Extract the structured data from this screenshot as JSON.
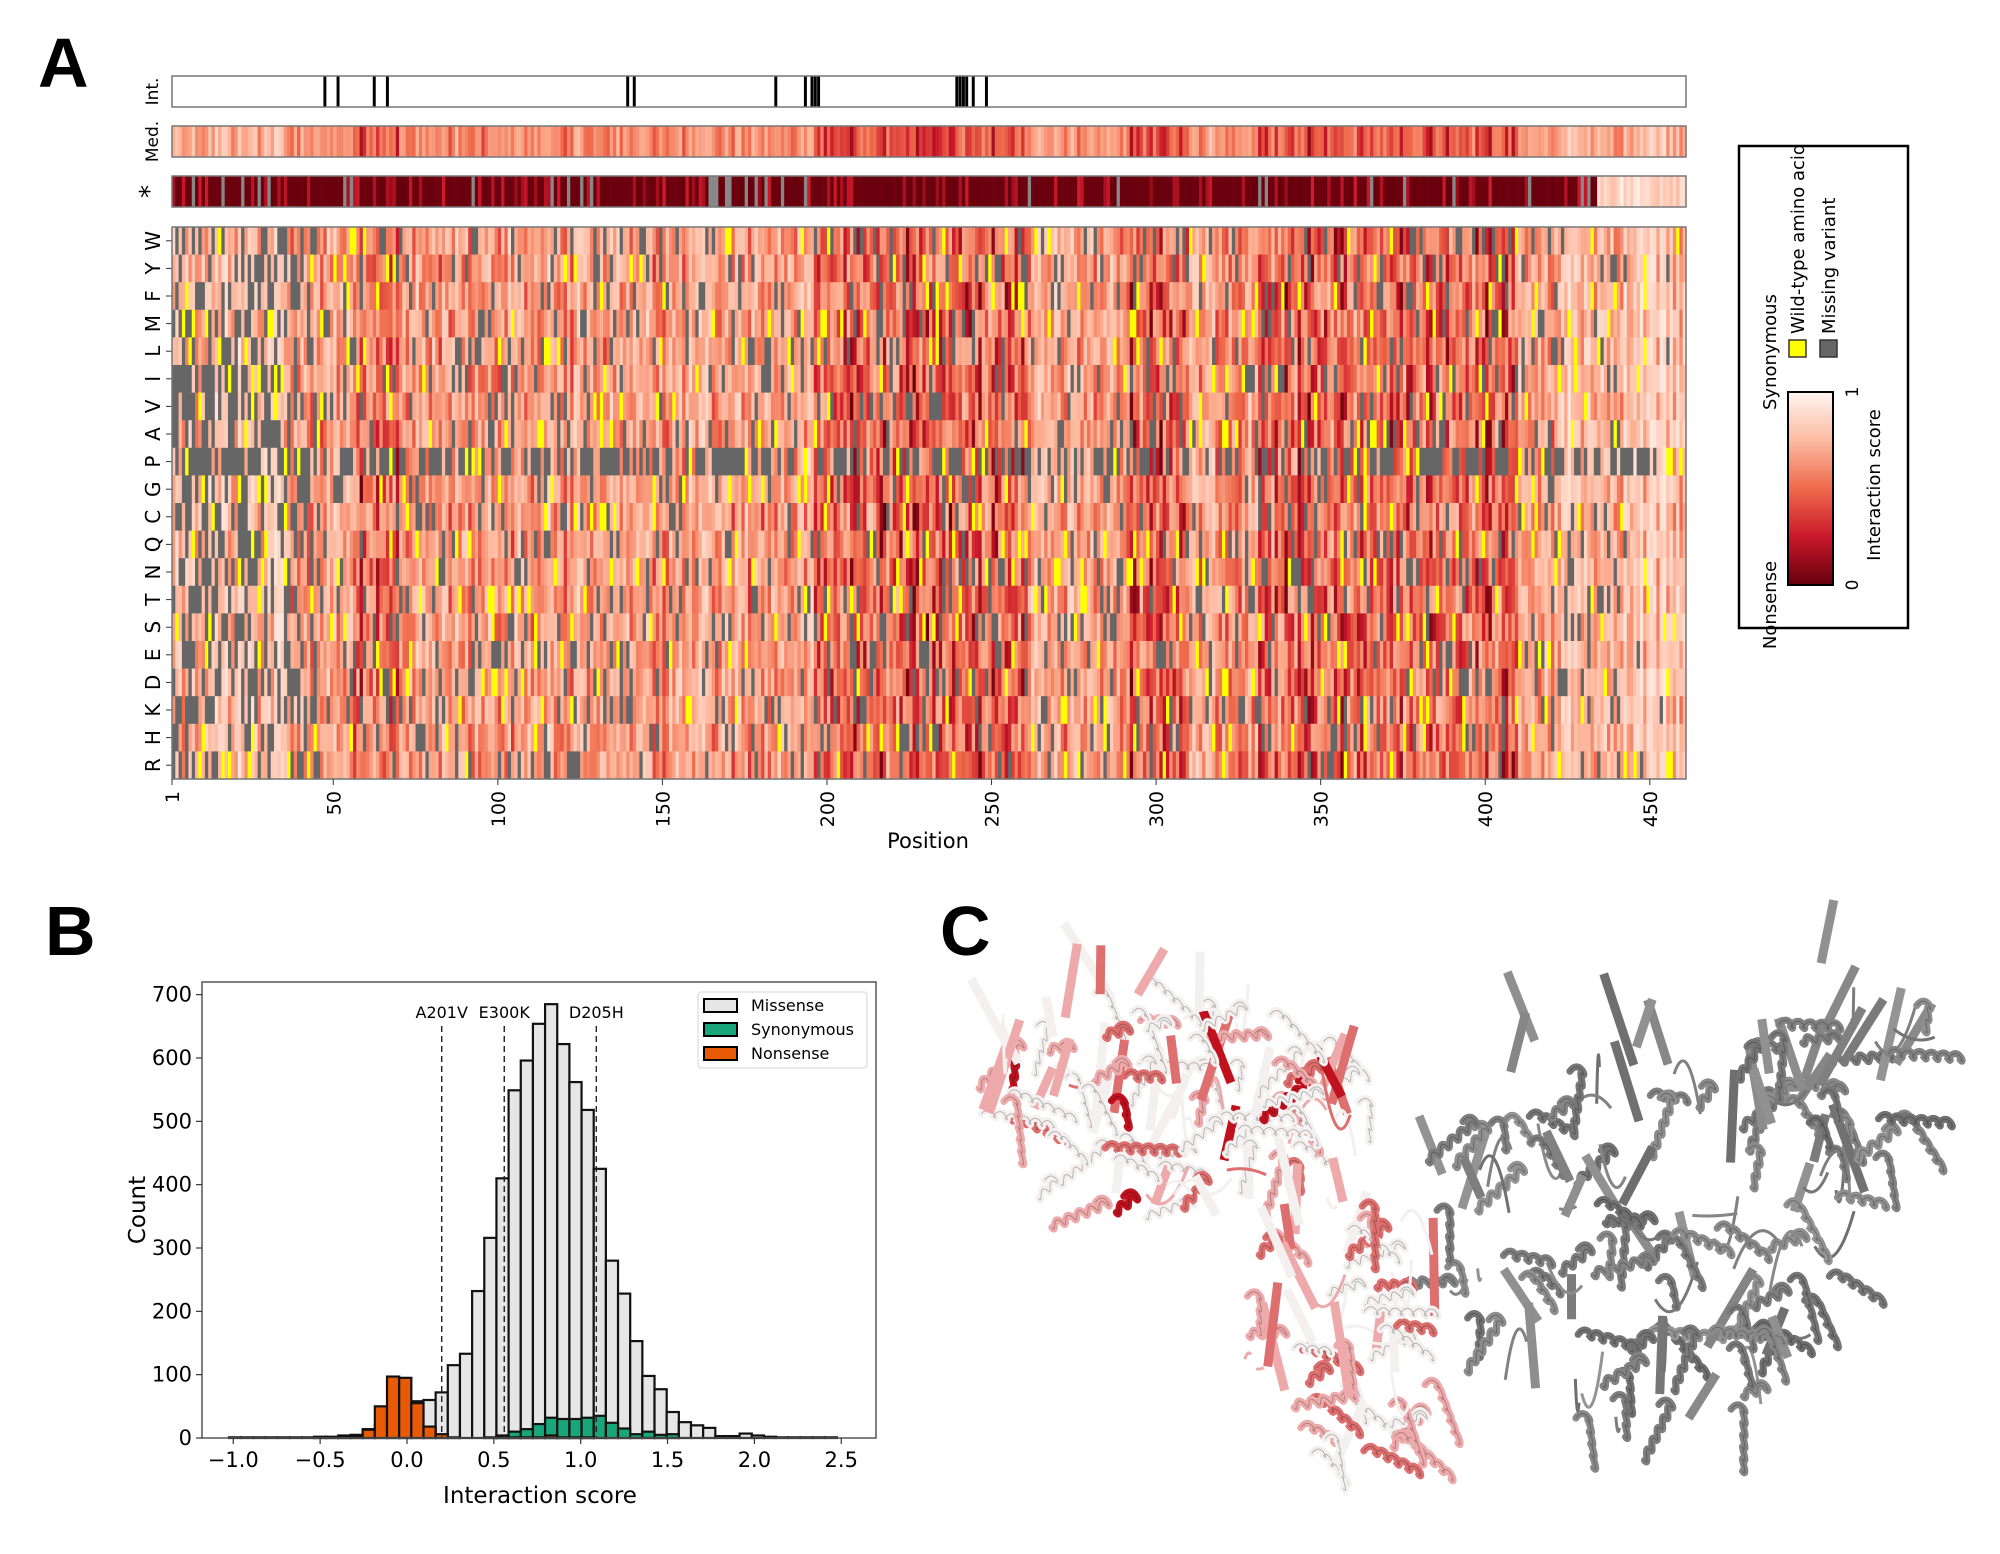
{
  "panels": {
    "a_label": "A",
    "b_label": "B",
    "c_label": "C"
  },
  "chart_data": [
    {
      "type": "heatmap",
      "panel": "A",
      "title": "",
      "xlabel": "Position",
      "ylabel": "",
      "n_positions": 460,
      "x_ticks": [
        "1",
        "50",
        "100",
        "150",
        "200",
        "250",
        "300",
        "350",
        "400",
        "450"
      ],
      "x_tick_values": [
        1,
        50,
        100,
        150,
        200,
        250,
        300,
        350,
        400,
        450
      ],
      "tracks": [
        {
          "label": "Int.",
          "kind": "binary",
          "positions": [
            47,
            51,
            62,
            66,
            139,
            141,
            184,
            193,
            195,
            196,
            197,
            239,
            240,
            241,
            242,
            244,
            248
          ]
        },
        {
          "label": "Med.",
          "kind": "median-score"
        },
        {
          "label": "*",
          "kind": "nonsense-score",
          "low_until_position": 434
        }
      ],
      "rows": [
        "W",
        "Y",
        "F",
        "M",
        "L",
        "I",
        "V",
        "A",
        "P",
        "G",
        "C",
        "Q",
        "N",
        "T",
        "S",
        "E",
        "D",
        "K",
        "H",
        "R"
      ],
      "cell_values_note": "per-variant interaction scores (0-1 color scale); cell pattern approximated",
      "colorscale": {
        "label": "Interaction score",
        "min_label": "0",
        "max_label": "1",
        "low_end_label": "Nonsense",
        "high_end_label": "Synonymous",
        "stops": [
          "#67000d",
          "#c9182a",
          "#ef6a4c",
          "#fcae91",
          "#fff5f0"
        ]
      },
      "legend": {
        "items": [
          {
            "label": "Wild-type amino acid",
            "color": "#ffff00"
          },
          {
            "label": "Missing variant",
            "color": "#666666"
          }
        ],
        "placement": "right"
      }
    },
    {
      "type": "bar",
      "subtype": "overlaid-histogram",
      "panel": "B",
      "title": "",
      "xlabel": "Interaction score",
      "ylabel": "Count",
      "xlim": [
        -1.18,
        2.7
      ],
      "ylim": [
        0,
        720
      ],
      "x_ticks": [
        "−1.0",
        "−0.5",
        "0.0",
        "0.5",
        "1.0",
        "1.5",
        "2.0",
        "2.5"
      ],
      "x_tick_values": [
        -1.0,
        -0.5,
        0.0,
        0.5,
        1.0,
        1.5,
        2.0,
        2.5
      ],
      "y_ticks": [
        "0",
        "100",
        "200",
        "300",
        "400",
        "500",
        "600",
        "700"
      ],
      "y_tick_values": [
        0,
        100,
        200,
        300,
        400,
        500,
        600,
        700
      ],
      "bin_width": 0.07,
      "bin_centers": [
        -0.99,
        -0.92,
        -0.85,
        -0.78,
        -0.71,
        -0.64,
        -0.57,
        -0.5,
        -0.43,
        -0.36,
        -0.29,
        -0.22,
        -0.15,
        -0.08,
        -0.01,
        0.06,
        0.13,
        0.2,
        0.27,
        0.34,
        0.41,
        0.48,
        0.55,
        0.62,
        0.69,
        0.76,
        0.83,
        0.9,
        0.97,
        1.04,
        1.11,
        1.18,
        1.25,
        1.32,
        1.39,
        1.46,
        1.53,
        1.6,
        1.67,
        1.74,
        1.81,
        1.88,
        1.95,
        2.02,
        2.09,
        2.16,
        2.23,
        2.3,
        2.37,
        2.44
      ],
      "series": [
        {
          "name": "Missense",
          "color": "#e6e6e6",
          "values": [
            1,
            1,
            1,
            1,
            1,
            1,
            1,
            2,
            2,
            4,
            5,
            14,
            20,
            22,
            25,
            58,
            60,
            72,
            115,
            133,
            232,
            316,
            410,
            549,
            596,
            654,
            685,
            622,
            562,
            518,
            425,
            280,
            228,
            153,
            98,
            77,
            41,
            25,
            20,
            16,
            3,
            3,
            7,
            4,
            2,
            1,
            1,
            1,
            1,
            1
          ]
        },
        {
          "name": "Synonymous",
          "color": "#18a67a",
          "values": [
            0,
            0,
            0,
            0,
            0,
            0,
            0,
            0,
            0,
            0,
            0,
            0,
            0,
            0,
            0,
            0,
            0,
            0,
            0,
            0,
            0,
            0,
            4,
            10,
            14,
            22,
            32,
            30,
            30,
            32,
            35,
            24,
            15,
            6,
            10,
            5,
            6,
            0,
            0,
            0,
            0,
            0,
            0,
            0,
            0,
            0,
            0,
            0,
            0,
            0
          ]
        },
        {
          "name": "Nonsense",
          "color": "#e85a06",
          "values": [
            0,
            0,
            0,
            0,
            0,
            0,
            0,
            1,
            1,
            2,
            3,
            13,
            50,
            97,
            95,
            55,
            18,
            6,
            1,
            0,
            0,
            1,
            1,
            1,
            1,
            1,
            4,
            1,
            1,
            1,
            0,
            0,
            0,
            0,
            0,
            0,
            0,
            0,
            0,
            0,
            0,
            0,
            0,
            0,
            0,
            0,
            0,
            0,
            0,
            0
          ]
        }
      ],
      "annotations": [
        {
          "label": "A201V",
          "x": 0.2
        },
        {
          "label": "E300K",
          "x": 0.56
        },
        {
          "label": "D205H",
          "x": 1.09
        }
      ],
      "legend": {
        "placement": "top-right",
        "entries": [
          "Missense",
          "Synonymous",
          "Nonsense"
        ]
      },
      "grid": false
    }
  ],
  "structure": {
    "panel": "C",
    "description": "protein cartoon: scored chain colored by interaction score (white to red), partner chain in grey",
    "scored_chain_color_low": "#ffffff",
    "scored_chain_color_high": "#c0121e",
    "partner_chain_color": "#858585"
  }
}
